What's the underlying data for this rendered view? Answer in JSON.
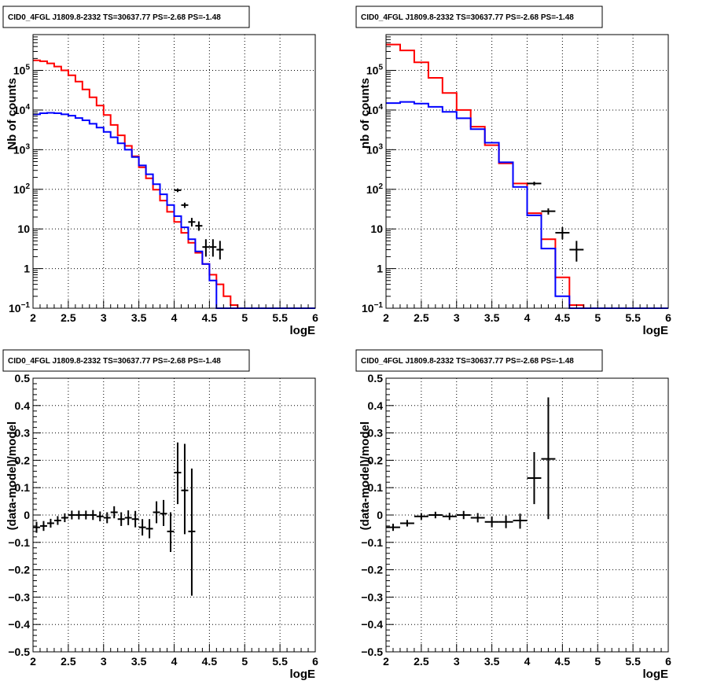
{
  "colors": {
    "data": "#000000",
    "model": "#ff0000",
    "background_model": "#0000ff",
    "grid": "#000000"
  },
  "chart_data": [
    {
      "type": "line",
      "title": "CID0_4FGL J1809.8-2332 TS=30637.77 PS=-2.68 PS=-1.48",
      "xlabel": "logE",
      "ylabel": "Nb of counts",
      "xlim": [
        2,
        6
      ],
      "ylim": [
        0.1,
        800000
      ],
      "yscale": "log",
      "grid": true,
      "xticks": [
        "2",
        "2.5",
        "3",
        "3.5",
        "4",
        "4.5",
        "5",
        "5.5",
        "6"
      ],
      "yticks": [
        {
          "v": 0.1,
          "label": "10",
          "sup": "−1"
        },
        {
          "v": 1,
          "label": "1",
          "sup": ""
        },
        {
          "v": 10,
          "label": "10",
          "sup": ""
        },
        {
          "v": 100,
          "label": "10",
          "sup": "2"
        },
        {
          "v": 1000,
          "label": "10",
          "sup": "3"
        },
        {
          "v": 10000,
          "label": "10",
          "sup": "4"
        },
        {
          "v": 100000,
          "label": "10",
          "sup": "5"
        }
      ],
      "bin_width": 0.1,
      "series": [
        {
          "values": [
            180000,
            170000,
            150000,
            125000,
            100000,
            75000,
            52000,
            33000,
            21000,
            13000,
            7500,
            4200,
            2300,
            1250,
            680,
            360,
            190,
            98,
            52,
            27,
            15,
            8,
            4.5,
            2.5,
            1.3,
            0.7,
            0.4,
            0.2,
            0.12,
            0.1,
            0.1,
            0.1,
            0.1,
            0.1,
            0.1,
            0.1,
            0.1,
            0.1,
            0.1,
            0.1
          ]
        },
        {
          "values": [
            7800,
            8300,
            8500,
            8300,
            7800,
            7200,
            6300,
            5500,
            4500,
            3600,
            2800,
            2050,
            1450,
            1000,
            650,
            400,
            240,
            135,
            75,
            40,
            21,
            11,
            5.5,
            2.7,
            1.3,
            0.5,
            0.1,
            0.1,
            0.1,
            0.1,
            0.1,
            0.1,
            0.1,
            0.1,
            0.1,
            0.1,
            0.1,
            0.1,
            0.1,
            0.1
          ]
        }
      ],
      "points": [
        {
          "x": 4.05,
          "y": 95,
          "xerr": 0.05,
          "ylo": 85,
          "yhi": 105
        },
        {
          "x": 4.15,
          "y": 40,
          "xerr": 0.05,
          "ylo": 34,
          "yhi": 46
        },
        {
          "x": 4.25,
          "y": 15,
          "xerr": 0.05,
          "ylo": 11.5,
          "yhi": 19
        },
        {
          "x": 4.35,
          "y": 12,
          "xerr": 0.05,
          "ylo": 9,
          "yhi": 15.5
        },
        {
          "x": 4.45,
          "y": 3.5,
          "xerr": 0.05,
          "ylo": 2.0,
          "yhi": 5.5
        },
        {
          "x": 4.55,
          "y": 3.5,
          "xerr": 0.05,
          "ylo": 2.0,
          "yhi": 5.5
        },
        {
          "x": 4.65,
          "y": 3.0,
          "xerr": 0.05,
          "ylo": 1.7,
          "yhi": 5.0
        }
      ]
    },
    {
      "type": "line",
      "title": "CID0_4FGL J1809.8-2332 TS=30637.77 PS=-2.68 PS=-1.48",
      "xlabel": "logE",
      "ylabel": "nb of counts",
      "xlim": [
        2,
        6
      ],
      "ylim": [
        0.1,
        800000
      ],
      "yscale": "log",
      "grid": true,
      "xticks": [
        "2",
        "2.5",
        "3",
        "3.5",
        "4",
        "4.5",
        "5",
        "5.5",
        "6"
      ],
      "yticks": [
        {
          "v": 0.1,
          "label": "10",
          "sup": "−1"
        },
        {
          "v": 1,
          "label": "1",
          "sup": ""
        },
        {
          "v": 10,
          "label": "10",
          "sup": ""
        },
        {
          "v": 100,
          "label": "10",
          "sup": "2"
        },
        {
          "v": 1000,
          "label": "10",
          "sup": "3"
        },
        {
          "v": 10000,
          "label": "10",
          "sup": "4"
        },
        {
          "v": 100000,
          "label": "10",
          "sup": "5"
        }
      ],
      "bin_width": 0.2,
      "series": [
        {
          "values": [
            450000,
            320000,
            160000,
            65000,
            27000,
            10000,
            3800,
            1300,
            450,
            140,
            25,
            5.5,
            0.6,
            0.12,
            0.1,
            0.1,
            0.1,
            0.1,
            0.1,
            0.1
          ]
        },
        {
          "values": [
            15000,
            16000,
            14500,
            12000,
            9000,
            6200,
            3300,
            1500,
            480,
            115,
            22,
            3.2,
            0.2,
            0.1,
            0.1,
            0.1,
            0.1,
            0.1,
            0.1,
            0.1
          ]
        }
      ],
      "points": [
        {
          "x": 4.1,
          "y": 140,
          "xerr": 0.1,
          "ylo": 125,
          "yhi": 155
        },
        {
          "x": 4.3,
          "y": 28,
          "xerr": 0.1,
          "ylo": 23,
          "yhi": 33
        },
        {
          "x": 4.5,
          "y": 8,
          "xerr": 0.1,
          "ylo": 5.5,
          "yhi": 11
        },
        {
          "x": 4.7,
          "y": 3,
          "xerr": 0.1,
          "ylo": 1.5,
          "yhi": 5
        }
      ]
    },
    {
      "type": "scatter",
      "title": "CID0_4FGL J1809.8-2332 TS=30637.77 PS=-2.68 PS=-1.48",
      "xlabel": "logE",
      "ylabel": "(data-model)/model",
      "xlim": [
        2,
        6
      ],
      "ylim": [
        -0.5,
        0.5
      ],
      "yscale": "linear",
      "grid": true,
      "xticks": [
        "2",
        "2.5",
        "3",
        "3.5",
        "4",
        "4.5",
        "5",
        "5.5",
        "6"
      ],
      "yticks": [
        {
          "v": -0.5,
          "label": "−0.5",
          "sup": ""
        },
        {
          "v": -0.4,
          "label": "−0.4",
          "sup": ""
        },
        {
          "v": -0.3,
          "label": "−0.3",
          "sup": ""
        },
        {
          "v": -0.2,
          "label": "−0.2",
          "sup": ""
        },
        {
          "v": -0.1,
          "label": "−0.1",
          "sup": ""
        },
        {
          "v": 0,
          "label": "0",
          "sup": ""
        },
        {
          "v": 0.1,
          "label": "0.1",
          "sup": ""
        },
        {
          "v": 0.2,
          "label": "0.2",
          "sup": ""
        },
        {
          "v": 0.3,
          "label": "0.3",
          "sup": ""
        },
        {
          "v": 0.4,
          "label": "0.4",
          "sup": ""
        },
        {
          "v": 0.5,
          "label": "0.5",
          "sup": ""
        }
      ],
      "points": [
        {
          "x": 2.05,
          "y": -0.045,
          "xerr": 0.05,
          "ylo": -0.065,
          "yhi": -0.025
        },
        {
          "x": 2.15,
          "y": -0.04,
          "xerr": 0.05,
          "ylo": -0.058,
          "yhi": -0.022
        },
        {
          "x": 2.25,
          "y": -0.03,
          "xerr": 0.05,
          "ylo": -0.046,
          "yhi": -0.014
        },
        {
          "x": 2.35,
          "y": -0.02,
          "xerr": 0.05,
          "ylo": -0.036,
          "yhi": -0.004
        },
        {
          "x": 2.45,
          "y": -0.01,
          "xerr": 0.05,
          "ylo": -0.026,
          "yhi": 0.006
        },
        {
          "x": 2.55,
          "y": 0.0,
          "xerr": 0.05,
          "ylo": -0.016,
          "yhi": 0.016
        },
        {
          "x": 2.65,
          "y": 0.0,
          "xerr": 0.05,
          "ylo": -0.016,
          "yhi": 0.016
        },
        {
          "x": 2.75,
          "y": 0.0,
          "xerr": 0.05,
          "ylo": -0.016,
          "yhi": 0.016
        },
        {
          "x": 2.85,
          "y": 0.0,
          "xerr": 0.05,
          "ylo": -0.018,
          "yhi": 0.018
        },
        {
          "x": 2.95,
          "y": -0.005,
          "xerr": 0.05,
          "ylo": -0.023,
          "yhi": 0.013
        },
        {
          "x": 3.05,
          "y": -0.01,
          "xerr": 0.05,
          "ylo": -0.03,
          "yhi": 0.01
        },
        {
          "x": 3.15,
          "y": 0.01,
          "xerr": 0.05,
          "ylo": -0.012,
          "yhi": 0.032
        },
        {
          "x": 3.25,
          "y": -0.015,
          "xerr": 0.05,
          "ylo": -0.04,
          "yhi": 0.01
        },
        {
          "x": 3.35,
          "y": -0.01,
          "xerr": 0.05,
          "ylo": -0.037,
          "yhi": 0.017
        },
        {
          "x": 3.45,
          "y": -0.015,
          "xerr": 0.05,
          "ylo": -0.045,
          "yhi": 0.015
        },
        {
          "x": 3.55,
          "y": -0.045,
          "xerr": 0.05,
          "ylo": -0.075,
          "yhi": -0.015
        },
        {
          "x": 3.65,
          "y": -0.05,
          "xerr": 0.05,
          "ylo": -0.085,
          "yhi": -0.015
        },
        {
          "x": 3.75,
          "y": 0.01,
          "xerr": 0.05,
          "ylo": -0.03,
          "yhi": 0.05
        },
        {
          "x": 3.85,
          "y": 0.005,
          "xerr": 0.05,
          "ylo": -0.04,
          "yhi": 0.055
        },
        {
          "x": 3.95,
          "y": -0.06,
          "xerr": 0.05,
          "ylo": -0.135,
          "yhi": 0.01
        },
        {
          "x": 4.05,
          "y": 0.155,
          "xerr": 0.05,
          "ylo": 0.04,
          "yhi": 0.265
        },
        {
          "x": 4.15,
          "y": 0.09,
          "xerr": 0.05,
          "ylo": -0.07,
          "yhi": 0.26
        },
        {
          "x": 4.25,
          "y": -0.06,
          "xerr": 0.05,
          "ylo": -0.295,
          "yhi": 0.17
        }
      ]
    },
    {
      "type": "scatter",
      "title": "CID0_4FGL J1809.8-2332 TS=30637.77 PS=-2.68 PS=-1.48",
      "xlabel": "logE",
      "ylabel": "(data-model)/model",
      "xlim": [
        2,
        6
      ],
      "ylim": [
        -0.5,
        0.5
      ],
      "yscale": "linear",
      "grid": true,
      "xticks": [
        "2",
        "2.5",
        "3",
        "3.5",
        "4",
        "4.5",
        "5",
        "5.5",
        "6"
      ],
      "yticks": [
        {
          "v": -0.5,
          "label": "−0.5",
          "sup": ""
        },
        {
          "v": -0.4,
          "label": "−0.4",
          "sup": ""
        },
        {
          "v": -0.3,
          "label": "−0.3",
          "sup": ""
        },
        {
          "v": -0.2,
          "label": "−0.2",
          "sup": ""
        },
        {
          "v": -0.1,
          "label": "−0.1",
          "sup": ""
        },
        {
          "v": 0,
          "label": "0",
          "sup": ""
        },
        {
          "v": 0.1,
          "label": "0.1",
          "sup": ""
        },
        {
          "v": 0.2,
          "label": "0.2",
          "sup": ""
        },
        {
          "v": 0.3,
          "label": "0.3",
          "sup": ""
        },
        {
          "v": 0.4,
          "label": "0.4",
          "sup": ""
        },
        {
          "v": 0.5,
          "label": "0.5",
          "sup": ""
        }
      ],
      "points": [
        {
          "x": 2.1,
          "y": -0.045,
          "xerr": 0.1,
          "ylo": -0.058,
          "yhi": -0.032
        },
        {
          "x": 2.3,
          "y": -0.03,
          "xerr": 0.1,
          "ylo": -0.042,
          "yhi": -0.018
        },
        {
          "x": 2.5,
          "y": -0.005,
          "xerr": 0.1,
          "ylo": -0.017,
          "yhi": 0.007
        },
        {
          "x": 2.7,
          "y": 0.0,
          "xerr": 0.1,
          "ylo": -0.012,
          "yhi": 0.012
        },
        {
          "x": 2.9,
          "y": -0.005,
          "xerr": 0.1,
          "ylo": -0.018,
          "yhi": 0.008
        },
        {
          "x": 3.1,
          "y": 0.0,
          "xerr": 0.1,
          "ylo": -0.015,
          "yhi": 0.015
        },
        {
          "x": 3.3,
          "y": -0.01,
          "xerr": 0.1,
          "ylo": -0.027,
          "yhi": 0.007
        },
        {
          "x": 3.5,
          "y": -0.025,
          "xerr": 0.1,
          "ylo": -0.045,
          "yhi": -0.005
        },
        {
          "x": 3.7,
          "y": -0.025,
          "xerr": 0.1,
          "ylo": -0.048,
          "yhi": -0.002
        },
        {
          "x": 3.9,
          "y": -0.02,
          "xerr": 0.1,
          "ylo": -0.05,
          "yhi": 0.005
        },
        {
          "x": 4.1,
          "y": 0.135,
          "xerr": 0.1,
          "ylo": 0.04,
          "yhi": 0.23
        },
        {
          "x": 4.3,
          "y": 0.205,
          "xerr": 0.1,
          "ylo": -0.015,
          "yhi": 0.43
        }
      ]
    }
  ]
}
